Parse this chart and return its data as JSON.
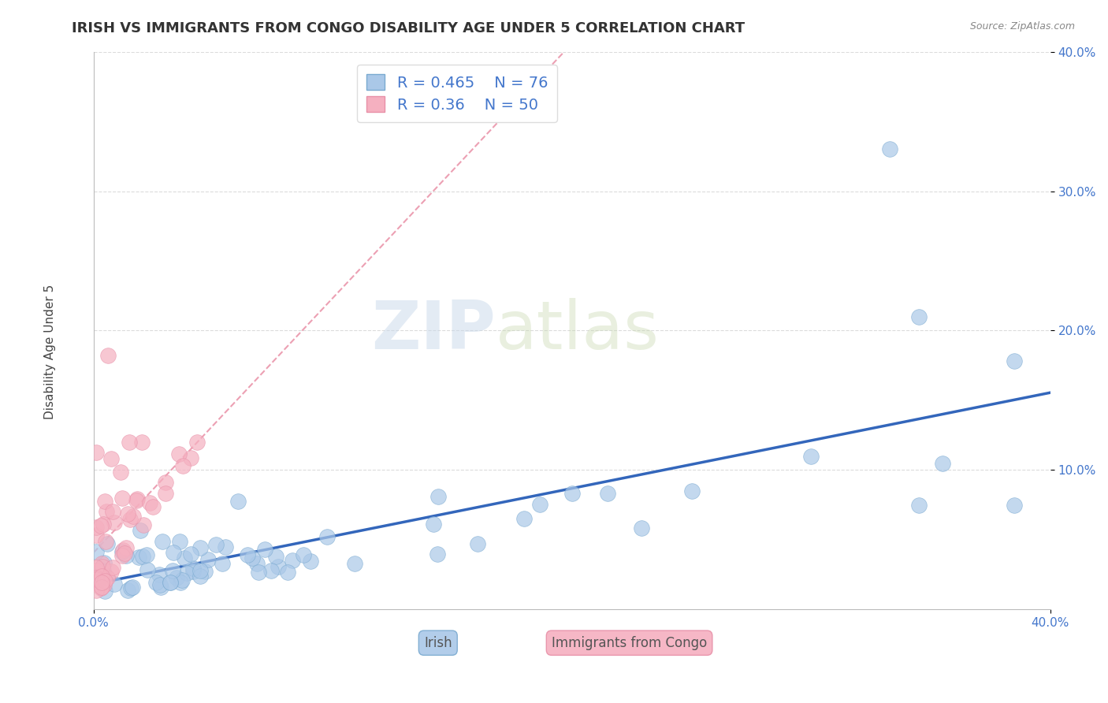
{
  "title": "IRISH VS IMMIGRANTS FROM CONGO DISABILITY AGE UNDER 5 CORRELATION CHART",
  "source": "Source: ZipAtlas.com",
  "ylabel": "Disability Age Under 5",
  "watermark_zip": "ZIP",
  "watermark_atlas": "atlas",
  "xlim": [
    0.0,
    0.4
  ],
  "ylim": [
    0.0,
    0.4
  ],
  "ytick_positions": [
    0.1,
    0.2,
    0.3,
    0.4
  ],
  "ytick_labels": [
    "10.0%",
    "20.0%",
    "30.0%",
    "40.0%"
  ],
  "xtick_left_label": "0.0%",
  "xtick_right_label": "40.0%",
  "irish_R": 0.465,
  "irish_N": 76,
  "congo_R": 0.36,
  "congo_N": 50,
  "irish_color": "#aac8e8",
  "irish_edge": "#7aaad0",
  "congo_color": "#f5b0c0",
  "congo_edge": "#e890a8",
  "irish_line_color": "#3366bb",
  "congo_line_color": "#e888a0",
  "title_fontsize": 13,
  "axis_label_fontsize": 11,
  "tick_fontsize": 11,
  "legend_fontsize": 14,
  "label_color": "#4477cc",
  "background_color": "#ffffff",
  "grid_color": "#cccccc"
}
